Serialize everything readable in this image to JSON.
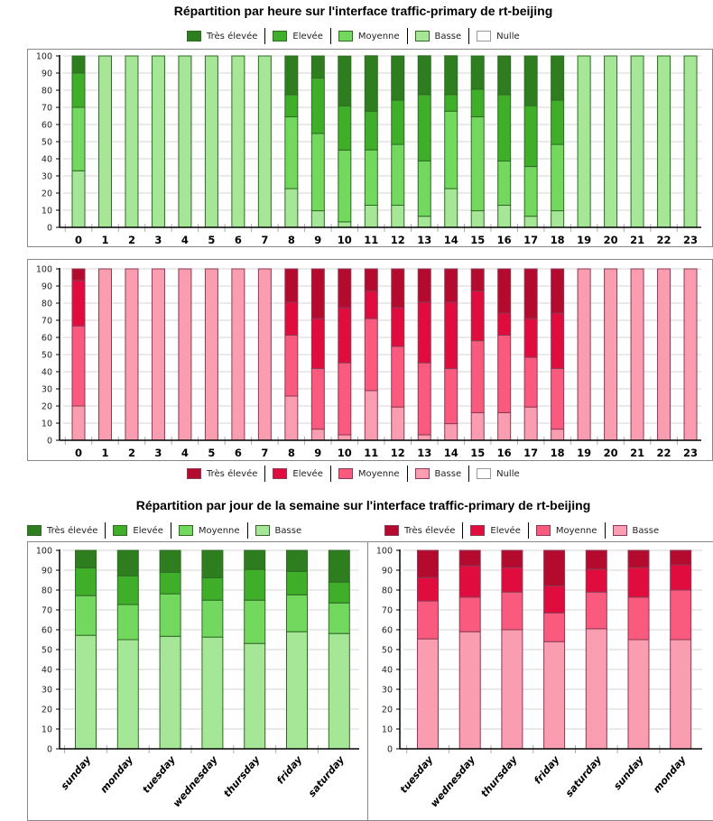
{
  "titles": {
    "hourly": "Répartition par heure sur l'interface traffic-primary de rt-beijing",
    "weekly": "Répartition par jour de la semaine sur l'interface traffic-primary de rt-beijing"
  },
  "legend_labels": [
    "Très élevée",
    "Elevée",
    "Moyenne",
    "Basse",
    "Nulle"
  ],
  "colors": {
    "green": [
      "#2e7d1e",
      "#3fae29",
      "#72d85e",
      "#a5e796",
      "#ffffff"
    ],
    "green_stroke": "#2f6a25",
    "red": [
      "#b30a2e",
      "#e00c3e",
      "#f95a7d",
      "#fa9db0",
      "#ffffff"
    ],
    "red_stroke": "#8a3a55"
  },
  "chart_data": [
    {
      "type": "bar",
      "stacked": true,
      "ylim": [
        0,
        100
      ],
      "grid": true,
      "yticks": [
        "0",
        "10",
        "20",
        "30",
        "40",
        "50",
        "60",
        "70",
        "80",
        "90",
        "100"
      ],
      "categories": [
        "0",
        "1",
        "2",
        "3",
        "4",
        "5",
        "6",
        "7",
        "8",
        "9",
        "10",
        "11",
        "12",
        "13",
        "14",
        "15",
        "16",
        "17",
        "18",
        "19",
        "20",
        "21",
        "22",
        "23"
      ],
      "series": [
        {
          "name": "Basse",
          "values": [
            33,
            100,
            100,
            100,
            100,
            100,
            100,
            100,
            22.6,
            9.7,
            3.2,
            12.9,
            12.9,
            6.5,
            22.6,
            9.7,
            12.9,
            6.5,
            9.7,
            100,
            100,
            100,
            100,
            100
          ]
        },
        {
          "name": "Moyenne",
          "values": [
            37,
            0,
            0,
            0,
            0,
            0,
            0,
            0,
            41.9,
            45.1,
            41.9,
            32.3,
            35.5,
            32.3,
            45.2,
            54.8,
            25.8,
            29,
            38.7,
            0,
            0,
            0,
            0,
            0
          ]
        },
        {
          "name": "Elevée",
          "values": [
            20,
            0,
            0,
            0,
            0,
            0,
            0,
            0,
            12.9,
            32.3,
            25.8,
            22.6,
            25.8,
            38.7,
            9.7,
            16.1,
            38.7,
            35.5,
            25.8,
            0,
            0,
            0,
            0,
            0
          ]
        },
        {
          "name": "Très élevée",
          "values": [
            10,
            0,
            0,
            0,
            0,
            0,
            0,
            0,
            22.6,
            12.9,
            29,
            32.3,
            25.8,
            22.6,
            22.6,
            19.4,
            22.6,
            29,
            25.8,
            0,
            0,
            0,
            0,
            0
          ]
        }
      ]
    },
    {
      "type": "bar",
      "stacked": true,
      "ylim": [
        0,
        100
      ],
      "grid": true,
      "yticks": [
        "0",
        "10",
        "20",
        "30",
        "40",
        "50",
        "60",
        "70",
        "80",
        "90",
        "100"
      ],
      "categories": [
        "0",
        "1",
        "2",
        "3",
        "4",
        "5",
        "6",
        "7",
        "8",
        "9",
        "10",
        "11",
        "12",
        "13",
        "14",
        "15",
        "16",
        "17",
        "18",
        "19",
        "20",
        "21",
        "22",
        "23"
      ],
      "series": [
        {
          "name": "Basse",
          "values": [
            20,
            100,
            100,
            100,
            100,
            100,
            100,
            100,
            25.8,
            6.5,
            3.2,
            29,
            19.4,
            3.2,
            9.7,
            16.1,
            16.1,
            19.4,
            6.5,
            100,
            100,
            100,
            100,
            100
          ]
        },
        {
          "name": "Moyenne",
          "values": [
            46.7,
            0,
            0,
            0,
            0,
            0,
            0,
            0,
            35.5,
            35.4,
            42,
            42,
            35.4,
            42,
            32.2,
            42,
            45.2,
            29,
            35.4,
            0,
            0,
            0,
            0,
            0
          ]
        },
        {
          "name": "Elevée",
          "values": [
            26.6,
            0,
            0,
            0,
            0,
            0,
            0,
            0,
            19.3,
            29.1,
            32.2,
            16.1,
            22.6,
            35.4,
            38.7,
            29,
            12.9,
            22.6,
            32.3,
            0,
            0,
            0,
            0,
            0
          ]
        },
        {
          "name": "Très élevée",
          "values": [
            6.7,
            0,
            0,
            0,
            0,
            0,
            0,
            0,
            19.4,
            29,
            22.6,
            12.9,
            22.6,
            19.4,
            19.4,
            12.9,
            25.8,
            29,
            25.8,
            0,
            0,
            0,
            0,
            0
          ]
        }
      ]
    },
    {
      "type": "bar",
      "stacked": true,
      "ylim": [
        0,
        100
      ],
      "grid": true,
      "yticks": [
        "0",
        "10",
        "20",
        "30",
        "40",
        "50",
        "60",
        "70",
        "80",
        "90",
        "100"
      ],
      "categories": [
        "sunday",
        "monday",
        "tuesday",
        "wednesday",
        "thursday",
        "friday",
        "saturday"
      ],
      "series": [
        {
          "name": "Basse",
          "values": [
            57.2,
            55,
            56.7,
            56.3,
            53.1,
            59,
            58.1
          ]
        },
        {
          "name": "Moyenne",
          "values": [
            20,
            17.7,
            21.4,
            18.6,
            21.8,
            18.6,
            15.4
          ]
        },
        {
          "name": "Elevée",
          "values": [
            14,
            14.5,
            10.9,
            11.3,
            15.5,
            11.8,
            10.5
          ]
        },
        {
          "name": "Très élevée",
          "values": [
            8.8,
            12.8,
            11,
            13.8,
            9.6,
            10.6,
            16
          ]
        }
      ]
    },
    {
      "type": "bar",
      "stacked": true,
      "ylim": [
        0,
        100
      ],
      "grid": true,
      "yticks": [
        "0",
        "10",
        "20",
        "30",
        "40",
        "50",
        "60",
        "70",
        "80",
        "90",
        "100"
      ],
      "categories": [
        "tuesday",
        "wednesday",
        "thursday",
        "friday",
        "saturday",
        "sunday",
        "monday"
      ],
      "series": [
        {
          "name": "Basse",
          "values": [
            55.4,
            59,
            60,
            54,
            60.5,
            55,
            55
          ]
        },
        {
          "name": "Moyenne",
          "values": [
            19.1,
            17.4,
            19,
            14.5,
            18.5,
            21.4,
            25
          ]
        },
        {
          "name": "Elevée",
          "values": [
            11.8,
            15.8,
            12.3,
            13.6,
            11.5,
            14.9,
            12.7
          ]
        },
        {
          "name": "Très élevée",
          "values": [
            13.7,
            7.8,
            8.7,
            17.9,
            9.5,
            8.7,
            7.3
          ]
        }
      ]
    }
  ]
}
